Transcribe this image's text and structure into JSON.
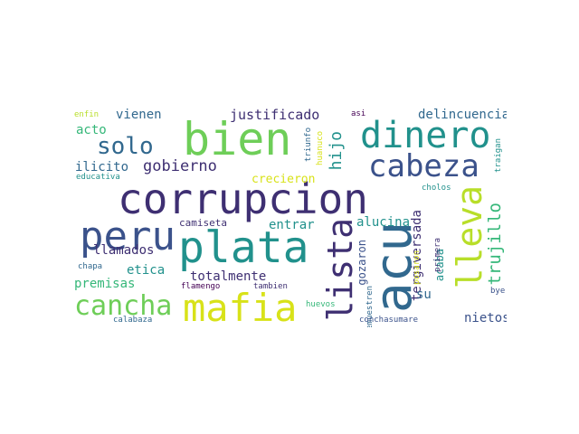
{
  "words": {
    "corrupcion": "corrupcion",
    "plata": "plata",
    "bien": "bien",
    "dinero": "dinero",
    "mafia": "mafia",
    "acu": "acu",
    "cabeza": "cabeza",
    "peru": "peru",
    "lista": "lista",
    "lleva": "lleva",
    "cancha": "cancha",
    "solo": "solo",
    "gobierno": "gobierno",
    "hijo": "hijo",
    "trujillo": "trujillo",
    "justificado": "justificado",
    "delincuencial": "delincuencial",
    "vienen": "vienen",
    "acto": "acto",
    "ilicito": "ilicito",
    "crecieron": "crecieron",
    "llamados": "llamados",
    "etica": "etica",
    "totalmente": "totalmente",
    "premisas": "premisas",
    "entrar": "entrar",
    "alucina": "alucina",
    "tergiversada": "tergiversada",
    "gozaron": "gozaron",
    "su": "su",
    "nietos": "nietos",
    "acaba": "acaba",
    "camiseta": "camiseta",
    "enfin": "enfin",
    "educativa": "educativa",
    "asi": "asi",
    "triunfo": "triunfo",
    "huanuco": "huanuco",
    "traigan": "traigan",
    "cholos": "cholos",
    "primera": "primera",
    "posaron": "posaron",
    "demuestren": "demuestren",
    "bye": "bye",
    "chapa": "chapa",
    "flamengo": "flamengo",
    "tambien": "tambien",
    "huevos": "huevos",
    "calabaza": "calabaza",
    "conchasumare": "conchasumare"
  },
  "palette": {
    "dark_purple": "#440154",
    "indigo": "#3b528b",
    "blue": "#31688e",
    "teal": "#21918c",
    "green": "#35b779",
    "lime": "#6ece58",
    "yellow": "#d8e219"
  }
}
